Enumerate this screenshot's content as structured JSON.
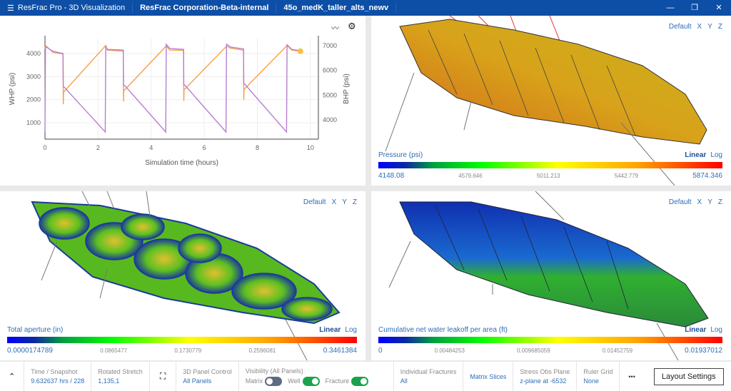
{
  "header": {
    "app_title": "ResFrac Pro - 3D Visualization",
    "organization": "ResFrac Corporation-Beta-internal",
    "project": "45o_medK_taller_alts_newv",
    "window_controls": [
      "minimize",
      "restore",
      "close"
    ]
  },
  "chart_panel": {
    "toolbar": [
      "trend-icon",
      "gear-icon"
    ]
  },
  "chart_data": {
    "type": "line",
    "xlabel": "Simulation time (hours)",
    "ylabel": "WHP (psi)",
    "y2label": "BHP (psi)",
    "xlim": [
      0,
      10.3
    ],
    "ylim": [
      290,
      4650
    ],
    "y2lim": [
      3220,
      7290
    ],
    "xticks": [
      0,
      2,
      4,
      6,
      8,
      10
    ],
    "yticks": [
      1000,
      2000,
      3000,
      4000
    ],
    "y2ticks": [
      4000,
      5000,
      6000,
      7000
    ],
    "grid": true,
    "series": [
      {
        "color": "#b77fd1",
        "x": [
          0,
          0.02,
          0.3,
          0.68,
          0.69,
          0.72,
          2.27,
          2.29,
          2.35,
          2.95,
          2.96,
          3.0,
          4.55,
          4.57,
          4.7,
          5.22,
          5.23,
          5.26,
          6.82,
          6.84,
          7.0,
          7.48,
          7.49,
          7.52,
          9.1,
          9.12,
          9.3,
          9.62
        ],
        "y": [
          600,
          4300,
          4100,
          4000,
          2550,
          2550,
          600,
          4300,
          4180,
          4150,
          2620,
          2620,
          600,
          4400,
          4220,
          4180,
          2640,
          2640,
          600,
          4400,
          4280,
          4200,
          2680,
          2680,
          600,
          4380,
          4180,
          4120
        ]
      },
      {
        "color": "#f5a04a",
        "x": [
          0,
          0.02,
          0.3,
          0.68,
          0.69,
          0.7,
          0.72,
          2.29,
          2.35,
          2.95,
          2.96,
          2.97,
          3.0,
          4.57,
          4.7,
          5.22,
          5.23,
          5.24,
          5.26,
          6.84,
          7.0,
          7.48,
          7.49,
          7.5,
          7.52,
          9.12,
          9.3,
          9.62
        ],
        "y": [
          4200,
          4350,
          4050,
          3980,
          1800,
          2350,
          2350,
          4350,
          4150,
          4100,
          1920,
          2420,
          2420,
          4330,
          4150,
          4140,
          1950,
          2450,
          2450,
          4320,
          4230,
          4150,
          1990,
          2470,
          2470,
          4350,
          4150,
          4100
        ]
      }
    ]
  },
  "panels": [
    {
      "view": [
        "Default",
        "X",
        "Y",
        "Z"
      ],
      "colorbar": {
        "label": "Pressure (psi)",
        "scale_options": [
          "Linear",
          "Log"
        ],
        "selected": "Linear",
        "ticks": [
          "4148.08",
          "4579.646",
          "5011.213",
          "5442.779",
          "5874.346"
        ]
      }
    },
    {
      "view": [
        "Default",
        "X",
        "Y",
        "Z"
      ],
      "colorbar": {
        "label": "Total aperture (in)",
        "scale_options": [
          "Linear",
          "Log"
        ],
        "selected": "Linear",
        "ticks": [
          "0.0000174789",
          "0.0865477",
          "0.1730779",
          "0.2596081",
          "0.3461384"
        ]
      }
    },
    {
      "view": [
        "Default",
        "X",
        "Y",
        "Z"
      ],
      "colorbar": {
        "label": "Cumulative net water leakoff per area (ft)",
        "scale_options": [
          "Linear",
          "Log"
        ],
        "selected": "Linear",
        "ticks": [
          "0",
          "0.00484253",
          "0.009685059",
          "0.01452759",
          "0.01937012"
        ]
      }
    }
  ],
  "footer": {
    "time_label": "Time / Snapshot",
    "time_value": "9.632637 hrs / 228",
    "stretch_label": "Rotated Stretch",
    "stretch_value": "1,135,1",
    "panel_label": "3D Panel Control",
    "panel_value": "All Panels",
    "vis_label": "Visibility (All Panels)",
    "vis_matrix": "Matrix",
    "vis_well": "Well",
    "vis_fracture": "Fracture",
    "toggles": {
      "matrix": false,
      "well": true,
      "fracture": true
    },
    "frac_label": "Individual Fractures",
    "frac_value": "All",
    "matrix_slices": "Matrix Slices",
    "stress_label": "Stress Obs Plane",
    "stress_value": "z-plane at -6532",
    "ruler_label": "Ruler Grid",
    "ruler_value": "None",
    "more": "•••",
    "layout": "Layout Settings"
  }
}
